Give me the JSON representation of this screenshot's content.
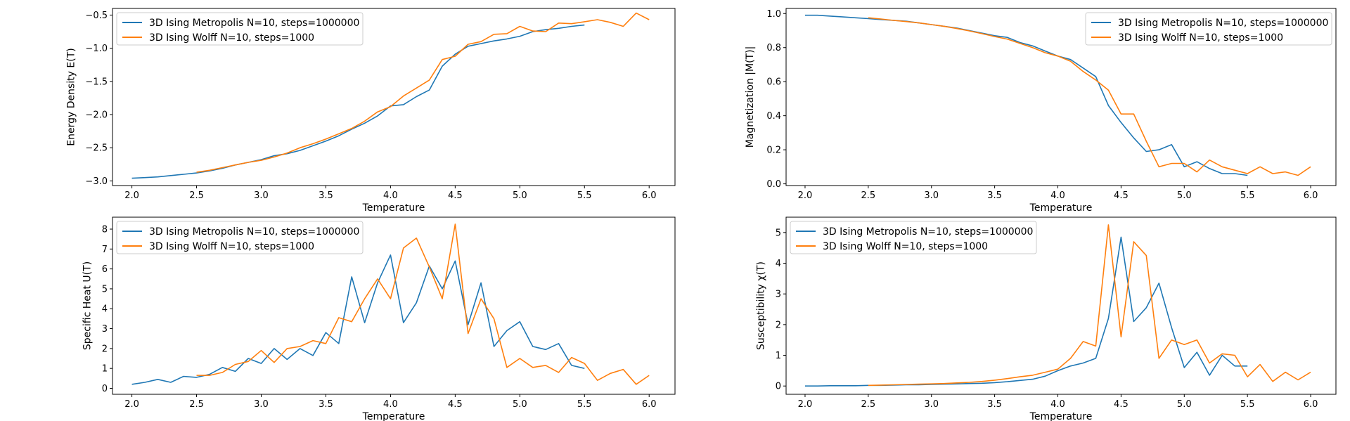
{
  "colors": {
    "metropolis": "#1f77b4",
    "wolff": "#ff7f0e"
  },
  "chart_data": [
    {
      "type": "line",
      "xlabel": "Temperature",
      "ylabel": "Energy Density E(T)",
      "xlim": [
        1.85,
        6.2
      ],
      "ylim": [
        -3.07,
        -0.4
      ],
      "xticks": [
        "2.0",
        "2.5",
        "3.0",
        "3.5",
        "4.0",
        "4.5",
        "5.0",
        "5.5",
        "6.0"
      ],
      "yticks": [
        "-3.0",
        "-2.5",
        "-2.0",
        "-1.5",
        "-1.0",
        "-0.5"
      ],
      "legend_position": "upper-left",
      "series": [
        {
          "name": "3D Ising Metropolis N=10, steps=1000000",
          "x": [
            2.0,
            2.1,
            2.2,
            2.3,
            2.4,
            2.5,
            2.6,
            2.7,
            2.8,
            2.9,
            3.0,
            3.1,
            3.2,
            3.3,
            3.4,
            3.5,
            3.6,
            3.7,
            3.8,
            3.9,
            4.0,
            4.1,
            4.2,
            4.3,
            4.4,
            4.5,
            4.6,
            4.7,
            4.8,
            4.9,
            5.0,
            5.1,
            5.2,
            5.3,
            5.4,
            5.5
          ],
          "y": [
            -2.96,
            -2.95,
            -2.94,
            -2.92,
            -2.9,
            -2.88,
            -2.85,
            -2.81,
            -2.76,
            -2.72,
            -2.68,
            -2.62,
            -2.59,
            -2.54,
            -2.47,
            -2.4,
            -2.32,
            -2.22,
            -2.13,
            -2.02,
            -1.87,
            -1.85,
            -1.73,
            -1.63,
            -1.27,
            -1.09,
            -0.97,
            -0.93,
            -0.89,
            -0.86,
            -0.82,
            -0.75,
            -0.72,
            -0.7,
            -0.67,
            -0.65
          ]
        },
        {
          "name": "3D Ising Wolff N=10, steps=1000",
          "x": [
            2.5,
            2.6,
            2.7,
            2.8,
            2.9,
            3.0,
            3.1,
            3.2,
            3.3,
            3.4,
            3.5,
            3.6,
            3.7,
            3.8,
            3.9,
            4.0,
            4.1,
            4.2,
            4.3,
            4.4,
            4.5,
            4.6,
            4.7,
            4.8,
            4.9,
            5.0,
            5.1,
            5.2,
            5.3,
            5.4,
            5.5,
            5.6,
            5.7,
            5.8,
            5.9,
            6.0
          ],
          "y": [
            -2.87,
            -2.84,
            -2.8,
            -2.76,
            -2.72,
            -2.69,
            -2.64,
            -2.58,
            -2.5,
            -2.44,
            -2.37,
            -2.29,
            -2.21,
            -2.1,
            -1.96,
            -1.88,
            -1.72,
            -1.6,
            -1.48,
            -1.17,
            -1.12,
            -0.94,
            -0.9,
            -0.79,
            -0.78,
            -0.67,
            -0.74,
            -0.75,
            -0.62,
            -0.63,
            -0.6,
            -0.57,
            -0.61,
            -0.67,
            -0.47,
            -0.57
          ]
        }
      ]
    },
    {
      "type": "line",
      "xlabel": "Temperature",
      "ylabel": "Magnetization |M(T)|",
      "xlim": [
        1.85,
        6.2
      ],
      "ylim": [
        -0.01,
        1.03
      ],
      "xticks": [
        "2.0",
        "2.5",
        "3.0",
        "3.5",
        "4.0",
        "4.5",
        "5.0",
        "5.5",
        "6.0"
      ],
      "yticks": [
        "0.0",
        "0.2",
        "0.4",
        "0.6",
        "0.8",
        "1.0"
      ],
      "legend_position": "upper-right",
      "series": [
        {
          "name": "3D Ising Metropolis N=10, steps=1000000",
          "x": [
            2.0,
            2.1,
            2.2,
            2.3,
            2.4,
            2.5,
            2.6,
            2.7,
            2.8,
            2.9,
            3.0,
            3.1,
            3.2,
            3.3,
            3.4,
            3.5,
            3.6,
            3.7,
            3.8,
            3.9,
            4.0,
            4.1,
            4.2,
            4.3,
            4.4,
            4.5,
            4.6,
            4.7,
            4.8,
            4.9,
            5.0,
            5.1,
            5.2,
            5.3,
            5.4,
            5.5
          ],
          "y": [
            0.99,
            0.99,
            0.985,
            0.98,
            0.975,
            0.97,
            0.965,
            0.96,
            0.955,
            0.945,
            0.935,
            0.925,
            0.915,
            0.9,
            0.885,
            0.87,
            0.86,
            0.83,
            0.81,
            0.78,
            0.75,
            0.73,
            0.68,
            0.63,
            0.46,
            0.36,
            0.27,
            0.19,
            0.2,
            0.23,
            0.1,
            0.13,
            0.09,
            0.06,
            0.06,
            0.05
          ]
        },
        {
          "name": "3D Ising Wolff N=10, steps=1000",
          "x": [
            2.5,
            2.6,
            2.7,
            2.8,
            2.9,
            3.0,
            3.1,
            3.2,
            3.3,
            3.4,
            3.5,
            3.6,
            3.7,
            3.8,
            3.9,
            4.0,
            4.1,
            4.2,
            4.3,
            4.4,
            4.5,
            4.6,
            4.7,
            4.8,
            4.9,
            5.0,
            5.1,
            5.2,
            5.3,
            5.4,
            5.5,
            5.6,
            5.7,
            5.8,
            5.9,
            6.0
          ],
          "y": [
            0.975,
            0.968,
            0.96,
            0.953,
            0.945,
            0.935,
            0.925,
            0.912,
            0.898,
            0.882,
            0.865,
            0.85,
            0.825,
            0.8,
            0.77,
            0.75,
            0.72,
            0.66,
            0.61,
            0.55,
            0.41,
            0.41,
            0.25,
            0.1,
            0.12,
            0.12,
            0.07,
            0.14,
            0.1,
            0.08,
            0.06,
            0.1,
            0.06,
            0.07,
            0.05,
            0.1
          ]
        }
      ]
    },
    {
      "type": "line",
      "xlabel": "Temperature",
      "ylabel": "Specific Heat U(T)",
      "xlim": [
        1.85,
        6.2
      ],
      "ylim": [
        -0.3,
        8.6
      ],
      "xticks": [
        "2.0",
        "2.5",
        "3.0",
        "3.5",
        "4.0",
        "4.5",
        "5.0",
        "5.5",
        "6.0"
      ],
      "yticks": [
        "0",
        "1",
        "2",
        "3",
        "4",
        "5",
        "6",
        "7",
        "8"
      ],
      "legend_position": "upper-left",
      "series": [
        {
          "name": "3D Ising Metropolis N=10, steps=1000000",
          "x": [
            2.0,
            2.1,
            2.2,
            2.3,
            2.4,
            2.5,
            2.6,
            2.7,
            2.8,
            2.9,
            3.0,
            3.1,
            3.2,
            3.3,
            3.4,
            3.5,
            3.6,
            3.7,
            3.8,
            3.9,
            4.0,
            4.1,
            4.2,
            4.3,
            4.4,
            4.5,
            4.6,
            4.7,
            4.8,
            4.9,
            5.0,
            5.1,
            5.2,
            5.3,
            5.4,
            5.5
          ],
          "y": [
            0.2,
            0.3,
            0.45,
            0.3,
            0.6,
            0.55,
            0.7,
            1.05,
            0.85,
            1.5,
            1.25,
            2.0,
            1.45,
            2.0,
            1.65,
            2.8,
            2.25,
            5.6,
            3.3,
            5.3,
            6.7,
            3.3,
            4.3,
            6.15,
            5.0,
            6.4,
            3.2,
            5.3,
            2.1,
            2.9,
            3.35,
            2.1,
            1.95,
            2.25,
            1.15,
            1.0
          ]
        },
        {
          "name": "3D Ising Wolff N=10, steps=1000",
          "x": [
            2.5,
            2.6,
            2.7,
            2.8,
            2.9,
            3.0,
            3.1,
            3.2,
            3.3,
            3.4,
            3.5,
            3.6,
            3.7,
            3.8,
            3.9,
            4.0,
            4.1,
            4.2,
            4.3,
            4.4,
            4.5,
            4.6,
            4.7,
            4.8,
            4.9,
            5.0,
            5.1,
            5.2,
            5.3,
            5.4,
            5.5,
            5.6,
            5.7,
            5.8,
            5.9,
            6.0
          ],
          "y": [
            0.65,
            0.65,
            0.8,
            1.2,
            1.35,
            1.9,
            1.3,
            2.0,
            2.1,
            2.4,
            2.25,
            3.55,
            3.35,
            4.5,
            5.5,
            4.5,
            7.05,
            7.55,
            6.1,
            4.5,
            8.25,
            2.75,
            4.5,
            3.5,
            1.05,
            1.5,
            1.05,
            1.15,
            0.8,
            1.55,
            1.25,
            0.4,
            0.75,
            0.95,
            0.2,
            0.65
          ]
        }
      ]
    },
    {
      "type": "line",
      "xlabel": "Temperature",
      "ylabel": "Susceptibility χ(T)",
      "xlim": [
        1.85,
        6.2
      ],
      "ylim": [
        -0.27,
        5.5
      ],
      "xticks": [
        "2.0",
        "2.5",
        "3.0",
        "3.5",
        "4.0",
        "4.5",
        "5.0",
        "5.5",
        "6.0"
      ],
      "yticks": [
        "0",
        "1",
        "2",
        "3",
        "4",
        "5"
      ],
      "legend_position": "upper-left",
      "series": [
        {
          "name": "3D Ising Metropolis N=10, steps=1000000",
          "x": [
            2.0,
            2.1,
            2.2,
            2.3,
            2.4,
            2.5,
            2.6,
            2.7,
            2.8,
            2.9,
            3.0,
            3.1,
            3.2,
            3.3,
            3.4,
            3.5,
            3.6,
            3.7,
            3.8,
            3.9,
            4.0,
            4.1,
            4.2,
            4.3,
            4.4,
            4.5,
            4.6,
            4.7,
            4.8,
            4.9,
            5.0,
            5.1,
            5.2,
            5.3,
            5.4,
            5.5
          ],
          "y": [
            0.0,
            0.0,
            0.01,
            0.01,
            0.01,
            0.02,
            0.02,
            0.03,
            0.04,
            0.04,
            0.05,
            0.06,
            0.07,
            0.08,
            0.09,
            0.11,
            0.14,
            0.18,
            0.22,
            0.32,
            0.5,
            0.65,
            0.75,
            0.9,
            2.2,
            4.85,
            2.1,
            2.55,
            3.35,
            1.9,
            0.6,
            1.1,
            0.35,
            1.0,
            0.65,
            0.65
          ]
        },
        {
          "name": "3D Ising Wolff N=10, steps=1000",
          "x": [
            2.5,
            2.6,
            2.7,
            2.8,
            2.9,
            3.0,
            3.1,
            3.2,
            3.3,
            3.4,
            3.5,
            3.6,
            3.7,
            3.8,
            3.9,
            4.0,
            4.1,
            4.2,
            4.3,
            4.4,
            4.5,
            4.6,
            4.7,
            4.8,
            4.9,
            5.0,
            5.1,
            5.2,
            5.3,
            5.4,
            5.5,
            5.6,
            5.7,
            5.8,
            5.9,
            6.0
          ],
          "y": [
            0.02,
            0.03,
            0.04,
            0.05,
            0.06,
            0.07,
            0.08,
            0.1,
            0.12,
            0.15,
            0.19,
            0.24,
            0.3,
            0.35,
            0.45,
            0.55,
            0.9,
            1.45,
            1.3,
            5.25,
            1.6,
            4.7,
            4.25,
            0.9,
            1.5,
            1.35,
            1.5,
            0.75,
            1.05,
            1.0,
            0.3,
            0.7,
            0.15,
            0.45,
            0.2,
            0.45
          ]
        }
      ]
    }
  ]
}
